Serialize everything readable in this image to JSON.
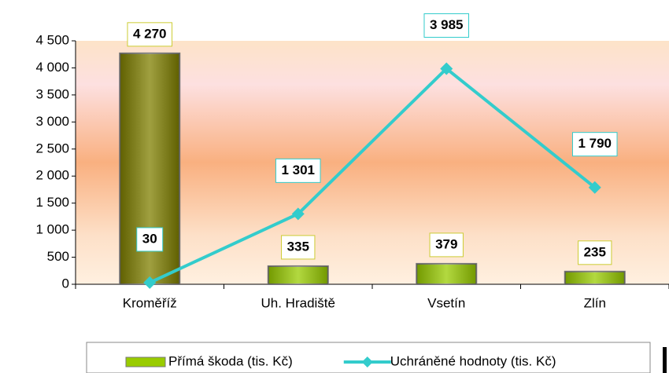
{
  "chart_data": {
    "type": "combo",
    "categories": [
      "Kroměříž",
      "Uh. Hradiště",
      "Vsetín",
      "Zlín"
    ],
    "series": [
      {
        "name": "Přímá škoda (tis. Kč)",
        "type": "bar",
        "color": "#99cc00",
        "colors": [
          "#808000",
          "#99cc00",
          "#99cc00",
          "#99cc00"
        ],
        "values": [
          4270,
          335,
          379,
          235
        ],
        "value_labels": [
          "4 270",
          "335",
          "379",
          "235"
        ]
      },
      {
        "name": "Uchráněné hodnoty (tis. Kč)",
        "type": "line",
        "color": "#33cccc",
        "values": [
          30,
          1301,
          3985,
          1790
        ],
        "value_labels": [
          "30",
          "1 301",
          "3 985",
          "1 790"
        ]
      }
    ],
    "ylim": [
      0,
      4500
    ],
    "yticks": [
      0,
      500,
      {
        "value": 1000,
        "label": "1 000"
      },
      {
        "value": 1500,
        "label": "1 500"
      },
      {
        "value": 2000,
        "label": "2 000"
      },
      {
        "value": 2500,
        "label": "2 500"
      },
      {
        "value": 3000,
        "label": "3 000"
      },
      {
        "value": 3500,
        "label": "3 500"
      },
      {
        "value": 4000,
        "label": "4 000"
      },
      {
        "value": 4500,
        "label": "4 500"
      }
    ],
    "legend": "bottom"
  }
}
